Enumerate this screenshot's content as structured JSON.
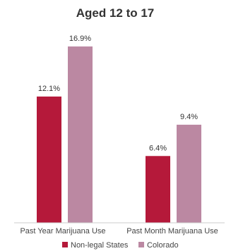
{
  "chart_data": {
    "type": "bar",
    "title": "Aged 12 to 17",
    "categories": [
      "Past Year Marijuana Use",
      "Past Month Marijuana Use"
    ],
    "series": [
      {
        "name": "Non-legal States",
        "color": "#b5193a",
        "values": [
          12.1,
          6.4
        ],
        "labels": [
          "12.1%",
          "6.4%"
        ]
      },
      {
        "name": "Colorado",
        "color": "#bb88a2",
        "values": [
          16.9,
          9.4
        ],
        "labels": [
          "16.9%",
          "9.4%"
        ]
      }
    ],
    "ylim": [
      0,
      17.5
    ],
    "grid": false,
    "legend": "bottom"
  }
}
